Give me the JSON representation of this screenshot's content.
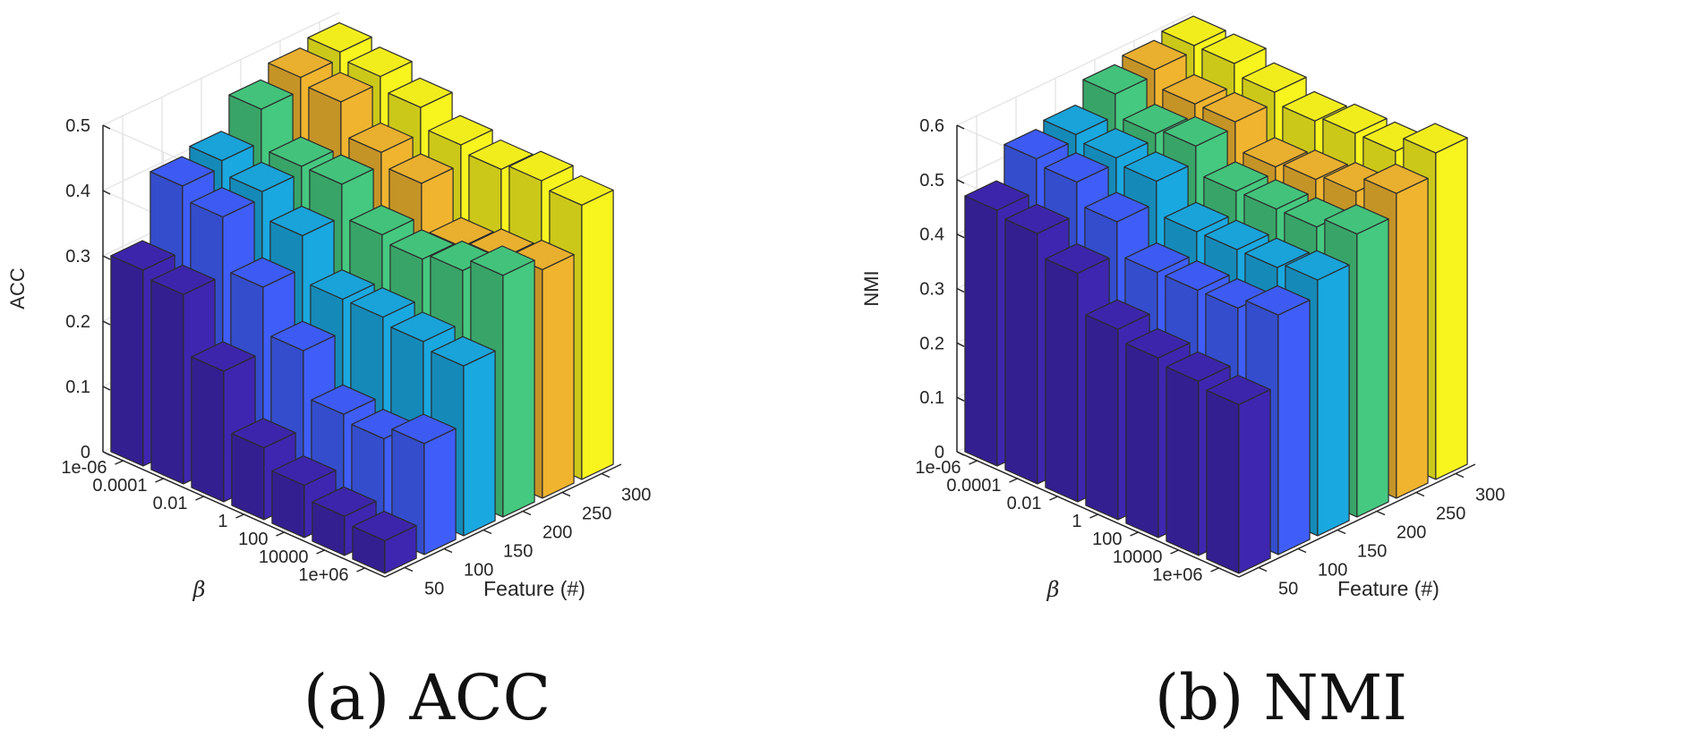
{
  "chart_data": [
    {
      "type": "bar3d",
      "caption": "(a) ACC",
      "zlabel": "ACC",
      "xlabel": "Feature (#)",
      "ylabel": "β",
      "zlim": [
        0,
        0.5
      ],
      "zticks": [
        "0",
        "0.1",
        "0.2",
        "0.3",
        "0.4",
        "0.5"
      ],
      "features": [
        "50",
        "100",
        "150",
        "200",
        "250",
        "300"
      ],
      "betas": [
        "1e-06",
        "0.0001",
        "0.01",
        "1",
        "100",
        "10000",
        "1e+06"
      ],
      "colors": [
        "#3f26b0",
        "#3f5ef9",
        "#1aa8e0",
        "#45c87f",
        "#f0b42f",
        "#f8f41e"
      ],
      "values": [
        [
          0.3,
          0.29,
          0.2,
          0.11,
          0.08,
          0.06,
          0.05
        ],
        [
          0.4,
          0.38,
          0.3,
          0.23,
          0.16,
          0.15,
          0.17
        ],
        [
          0.41,
          0.39,
          0.35,
          0.28,
          0.28,
          0.27,
          0.26
        ],
        [
          0.46,
          0.4,
          0.4,
          0.35,
          0.34,
          0.35,
          0.37
        ],
        [
          0.48,
          0.47,
          0.42,
          0.4,
          0.33,
          0.34,
          0.35
        ],
        [
          0.49,
          0.48,
          0.46,
          0.43,
          0.42,
          0.43,
          0.42
        ]
      ]
    },
    {
      "type": "bar3d",
      "caption": "(b) NMI",
      "zlabel": "NMI",
      "xlabel": "Feature (#)",
      "ylabel": "β",
      "zlim": [
        0,
        0.6
      ],
      "zticks": [
        "0",
        "0.1",
        "0.2",
        "0.3",
        "0.4",
        "0.5",
        "0.6"
      ],
      "features": [
        "50",
        "100",
        "150",
        "200",
        "250",
        "300"
      ],
      "betas": [
        "1e-06",
        "0.0001",
        "0.01",
        "1",
        "100",
        "10000",
        "1e+06"
      ],
      "colors": [
        "#3f26b0",
        "#3f5ef9",
        "#1aa8e0",
        "#45c87f",
        "#f0b42f",
        "#f8f41e"
      ],
      "values": [
        [
          0.47,
          0.46,
          0.42,
          0.35,
          0.33,
          0.32,
          0.31
        ],
        [
          0.53,
          0.52,
          0.48,
          0.42,
          0.42,
          0.42,
          0.44
        ],
        [
          0.54,
          0.53,
          0.52,
          0.46,
          0.46,
          0.46,
          0.47
        ],
        [
          0.58,
          0.54,
          0.55,
          0.5,
          0.5,
          0.5,
          0.52
        ],
        [
          0.59,
          0.56,
          0.56,
          0.51,
          0.52,
          0.53,
          0.56
        ],
        [
          0.6,
          0.6,
          0.58,
          0.56,
          0.57,
          0.57,
          0.6
        ]
      ]
    }
  ]
}
